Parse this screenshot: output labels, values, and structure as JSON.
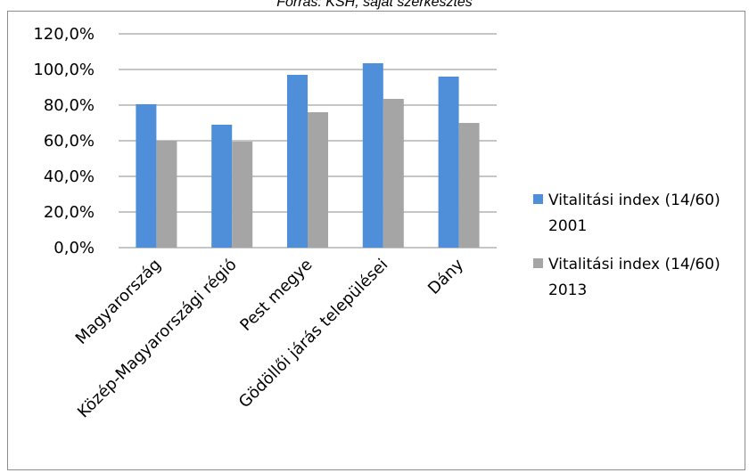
{
  "caption": "Forrás: KSH, saját szerkesztés",
  "chart_data": {
    "type": "bar",
    "categories": [
      "Magyarország",
      "Közép-Magyarországi régió",
      "Pest megye",
      "Gödöllői járás települései",
      "Dány"
    ],
    "series": [
      {
        "name": "Vitalitási index (14/60) 2001",
        "values": [
          80.5,
          69.0,
          97.0,
          103.5,
          96.0
        ],
        "color": "#4f8fd9"
      },
      {
        "name": "Vitalitási index (14/60) 2013",
        "values": [
          60.0,
          59.5,
          76.0,
          83.5,
          70.0
        ],
        "color": "#a5a5a5"
      }
    ],
    "yticks": [
      "0,0%",
      "20,0%",
      "40,0%",
      "60,0%",
      "80,0%",
      "100,0%",
      "120,0%"
    ],
    "ylim": [
      0,
      120
    ],
    "grid": true,
    "legend": {
      "placement": "right",
      "entries": [
        {
          "line1": "Vitalitási index (14/60)",
          "line2": "2001"
        },
        {
          "line1": "Vitalitási index (14/60)",
          "line2": "2013"
        }
      ]
    }
  }
}
